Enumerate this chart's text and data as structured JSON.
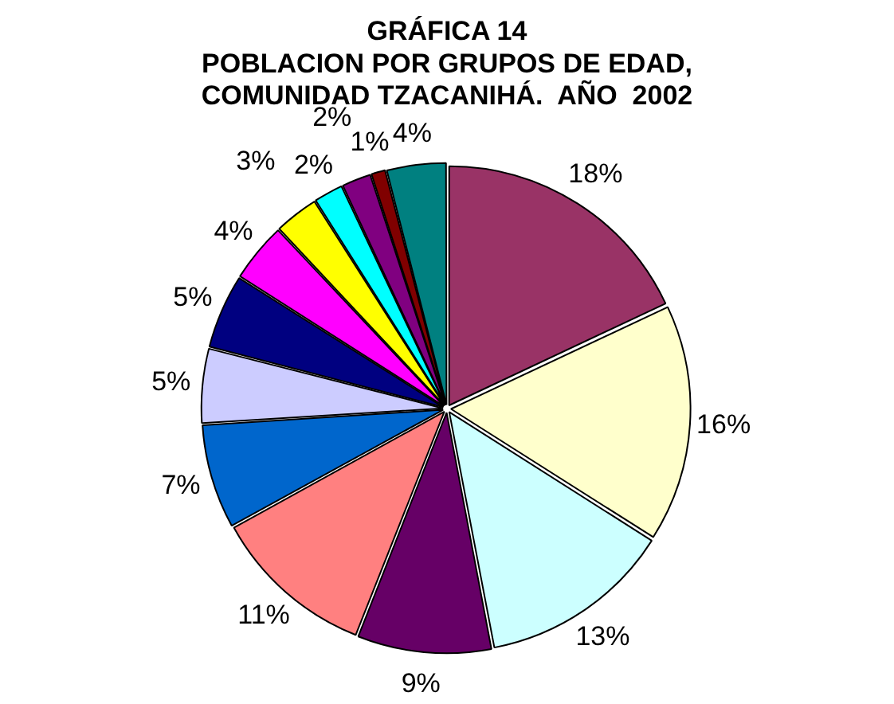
{
  "chart_data": {
    "type": "pie",
    "title": "GRÁFICA 14\nPOBLACION POR GRUPOS DE EDAD,\nCOMUNIDAD TZACANIHÁ.  AÑO  2002",
    "categories": [
      null,
      null,
      null,
      null,
      null,
      null,
      null,
      null,
      null,
      null,
      null,
      null,
      null,
      null
    ],
    "values": [
      18,
      16,
      13,
      9,
      11,
      7,
      5,
      5,
      4,
      3,
      2,
      2,
      1,
      4
    ],
    "colors": [
      "#993366",
      "#ffffcc",
      "#ccffff",
      "#660066",
      "#ff8080",
      "#0066cc",
      "#ccccff",
      "#000080",
      "#ff00ff",
      "#ffff00",
      "#00ffff",
      "#800080",
      "#800000",
      "#008080"
    ],
    "value_labels": [
      "18%",
      "16%",
      "13%",
      "9%",
      "11%",
      "7%",
      "5%",
      "5%",
      "4%",
      "3%",
      "2%",
      "2%",
      "1%",
      "4%"
    ],
    "legend": false
  }
}
